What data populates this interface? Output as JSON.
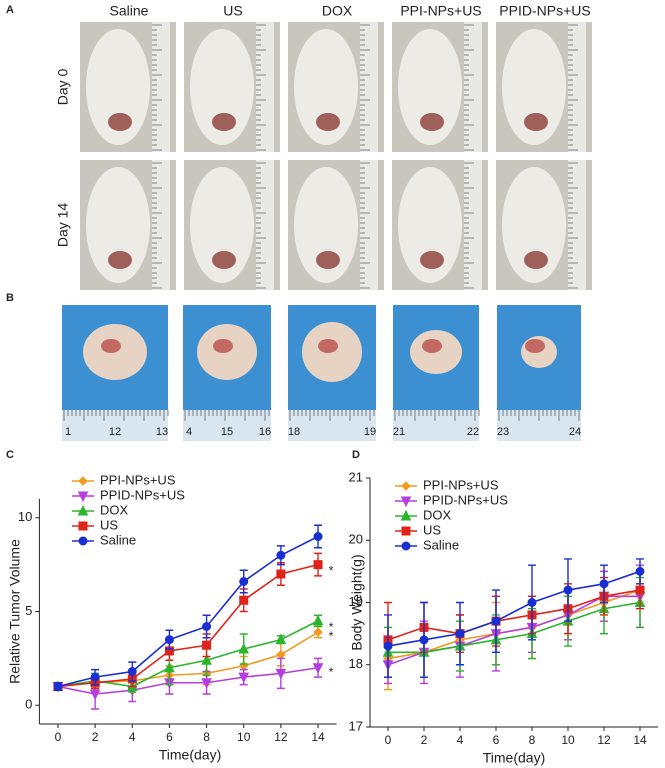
{
  "panels": [
    "A",
    "B",
    "C",
    "D"
  ],
  "photo_columns": [
    "Saline",
    "US",
    "DOX",
    "PPI-NPs+US",
    "PPID-NPs+US"
  ],
  "photo_rows": [
    "Day 0",
    "Day 14"
  ],
  "ruler_labels": [
    [
      "1",
      "12",
      "13"
    ],
    [
      "4",
      "15",
      "16"
    ],
    [
      "18",
      "19"
    ],
    [
      "21",
      "22"
    ],
    [
      "23",
      "24"
    ]
  ],
  "chart_data": [
    {
      "type": "line",
      "xlabel": "Time(day)",
      "ylabel": "Relative Tumor Volume",
      "x": [
        0,
        2,
        4,
        6,
        8,
        10,
        12,
        14
      ],
      "xlim": [
        -1,
        15
      ],
      "xticks": [
        0,
        2,
        4,
        6,
        8,
        10,
        12,
        14
      ],
      "ylim": [
        -1,
        11
      ],
      "yticks": [
        0,
        5,
        10
      ],
      "series": [
        {
          "name": "PPI-NPs+US",
          "color": "#f39a1f",
          "marker": "diamond",
          "values": [
            1,
            1.2,
            1.3,
            1.6,
            1.7,
            2.1,
            2.7,
            3.9
          ],
          "errors": [
            0.1,
            0.3,
            0.4,
            0.5,
            0.6,
            0.5,
            0.6,
            0.3
          ]
        },
        {
          "name": "PPID-NPs+US",
          "color": "#b43fe0",
          "marker": "triangle-down",
          "values": [
            1,
            0.6,
            0.8,
            1.2,
            1.2,
            1.5,
            1.7,
            2.0
          ],
          "errors": [
            0.1,
            0.8,
            0.6,
            0.6,
            0.6,
            0.4,
            0.8,
            0.5
          ]
        },
        {
          "name": "DOX",
          "color": "#2bb52b",
          "marker": "triangle",
          "values": [
            1,
            1.3,
            1.0,
            2.0,
            2.4,
            3.0,
            3.5,
            4.5
          ],
          "errors": [
            0.1,
            0.4,
            0.3,
            0.9,
            0.8,
            0.8,
            0.2,
            0.3
          ]
        },
        {
          "name": "US",
          "color": "#e0231a",
          "marker": "square",
          "values": [
            1,
            1.2,
            1.4,
            2.9,
            3.2,
            5.6,
            7.0,
            7.5
          ],
          "errors": [
            0.1,
            0.3,
            0.4,
            0.5,
            0.6,
            0.6,
            0.6,
            0.6
          ]
        },
        {
          "name": "Saline",
          "color": "#1a2fd0",
          "marker": "circle",
          "values": [
            1,
            1.5,
            1.8,
            3.5,
            4.2,
            6.6,
            8.0,
            9.0
          ],
          "errors": [
            0.2,
            0.4,
            0.5,
            0.5,
            0.6,
            0.6,
            0.5,
            0.6
          ]
        }
      ],
      "annotations": [
        {
          "text": "*",
          "x": 14.7,
          "y": 7.3
        },
        {
          "text": "*",
          "x": 14.7,
          "y": 4.3
        },
        {
          "text": "*",
          "x": 14.7,
          "y": 3.8
        },
        {
          "text": "*",
          "x": 14.7,
          "y": 1.9
        }
      ]
    },
    {
      "type": "line",
      "xlabel": "Time(day)",
      "ylabel": "Body Weight(g)",
      "x": [
        0,
        2,
        4,
        6,
        8,
        10,
        12,
        14
      ],
      "xlim": [
        -1,
        15
      ],
      "xticks": [
        0,
        2,
        4,
        6,
        8,
        10,
        12,
        14
      ],
      "ylim": [
        17,
        21
      ],
      "yticks": [
        17,
        18,
        19,
        20,
        21
      ],
      "series": [
        {
          "name": "PPI-NPs+US",
          "color": "#f39a1f",
          "marker": "diamond",
          "values": [
            18.1,
            18.2,
            18.4,
            18.5,
            18.6,
            18.8,
            19.0,
            19.2
          ],
          "errors": [
            0.5,
            0.4,
            0.4,
            0.5,
            0.5,
            0.4,
            0.3,
            0.3
          ]
        },
        {
          "name": "PPID-NPs+US",
          "color": "#b43fe0",
          "marker": "triangle-down",
          "values": [
            18.0,
            18.2,
            18.3,
            18.5,
            18.6,
            18.8,
            19.1,
            19.1
          ],
          "errors": [
            0.3,
            0.5,
            0.5,
            0.6,
            0.4,
            0.4,
            0.4,
            0.5
          ]
        },
        {
          "name": "DOX",
          "color": "#2bb52b",
          "marker": "triangle",
          "values": [
            18.2,
            18.2,
            18.3,
            18.4,
            18.5,
            18.7,
            18.9,
            19.0
          ],
          "errors": [
            0.4,
            0.4,
            0.4,
            0.4,
            0.4,
            0.4,
            0.4,
            0.4
          ]
        },
        {
          "name": "US",
          "color": "#e0231a",
          "marker": "square",
          "values": [
            18.4,
            18.6,
            18.5,
            18.7,
            18.8,
            18.9,
            19.1,
            19.2
          ],
          "errors": [
            0.6,
            0.4,
            0.3,
            0.4,
            0.3,
            0.4,
            0.3,
            0.3
          ]
        },
        {
          "name": "Saline",
          "color": "#1a2fd0",
          "marker": "circle",
          "values": [
            18.3,
            18.4,
            18.5,
            18.7,
            19.0,
            19.2,
            19.3,
            19.5
          ],
          "errors": [
            0.5,
            0.6,
            0.5,
            0.5,
            0.6,
            0.5,
            0.3,
            0.2
          ]
        }
      ]
    }
  ]
}
